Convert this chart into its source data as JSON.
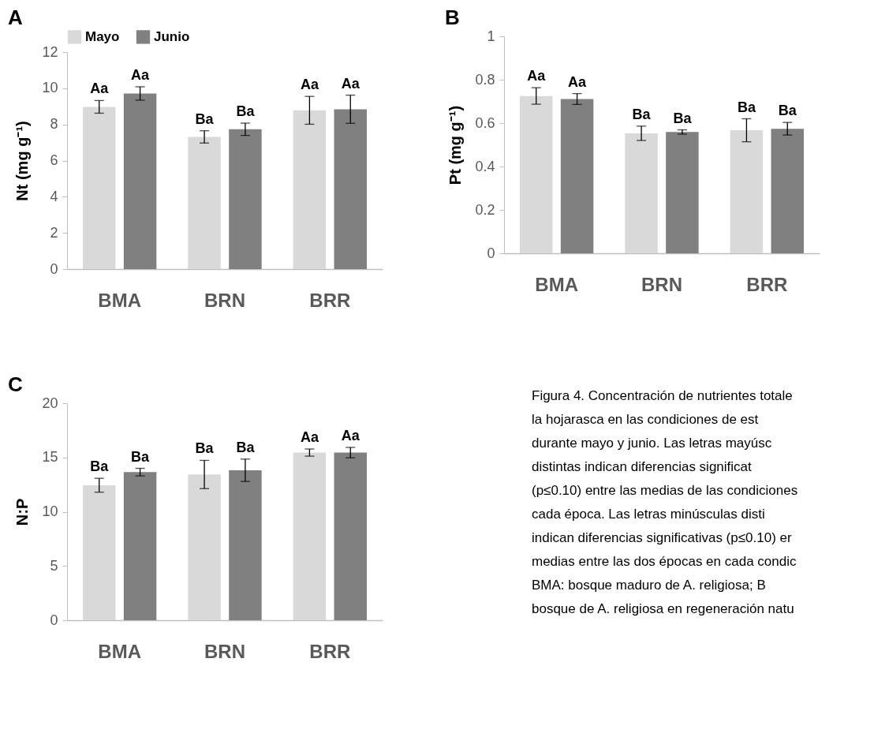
{
  "chart_data": [
    {
      "type": "bar",
      "title": "A",
      "ylabel": "Nt (mg g⁻¹)",
      "categories": [
        "BMA",
        "BRN",
        "BRR"
      ],
      "ylim": [
        0,
        12
      ],
      "yticks": [
        0,
        2,
        4,
        6,
        8,
        10,
        12
      ],
      "legend": "top",
      "series": [
        {
          "name": "Mayo",
          "color": "#d9d9d9",
          "values": [
            8.97,
            7.31,
            8.78
          ],
          "errors": [
            0.35,
            0.34,
            0.77
          ],
          "value_labels": [
            "Aa",
            "Ba",
            "Aa"
          ]
        },
        {
          "name": "Junio",
          "color": "#808080",
          "values": [
            9.71,
            7.73,
            8.84
          ],
          "errors": [
            0.37,
            0.34,
            0.78
          ],
          "value_labels": [
            "Aa",
            "Ba",
            "Aa"
          ]
        }
      ]
    },
    {
      "type": "bar",
      "title": "B",
      "ylabel": "Pt (mg g⁻¹)",
      "categories": [
        "BMA",
        "BRN",
        "BRR"
      ],
      "ylim": [
        0,
        1
      ],
      "yticks": [
        0,
        0.2,
        0.4,
        0.6,
        0.8,
        1
      ],
      "series": [
        {
          "color": "#d9d9d9",
          "values": [
            0.725,
            0.553,
            0.567
          ],
          "errors": [
            0.038,
            0.033,
            0.053
          ],
          "value_labels": [
            "Aa",
            "Ba",
            "Ba"
          ]
        },
        {
          "color": "#808080",
          "values": [
            0.711,
            0.559,
            0.574
          ],
          "errors": [
            0.025,
            0.01,
            0.029
          ],
          "value_labels": [
            "Aa",
            "Ba",
            "Ba"
          ]
        }
      ]
    },
    {
      "type": "bar",
      "title": "C",
      "ylabel": "N:P",
      "categories": [
        "BMA",
        "BRN",
        "BRR"
      ],
      "ylim": [
        0,
        20
      ],
      "yticks": [
        0,
        5,
        10,
        15,
        20
      ],
      "annotations": [
        "Figura 4. Concentración de nutrientes totale\nla hojarasca en las condiciones de est\ndurante mayo y junio. Las letras mayúsc\ndistintas indican diferencias significat\n(p≤0.10) entre las medias de las condiciones\ncada época. Las letras minúsculas disti\nindican diferencias significativas (p≤0.10) er\nmedias entre las dos épocas en cada condic\nBMA: bosque maduro de A. religiosa; B\nbosque de A. religiosa en regeneración natu"
      ],
      "series": [
        {
          "color": "#d9d9d9",
          "values": [
            12.44,
            13.43,
            15.45
          ],
          "errors": [
            0.64,
            1.3,
            0.33
          ],
          "value_labels": [
            "Ba",
            "Ba",
            "Aa"
          ]
        },
        {
          "color": "#808080",
          "values": [
            13.65,
            13.82,
            15.45
          ],
          "errors": [
            0.35,
            1.03,
            0.48
          ],
          "value_labels": [
            "Ba",
            "Ba",
            "Aa"
          ]
        }
      ]
    }
  ]
}
